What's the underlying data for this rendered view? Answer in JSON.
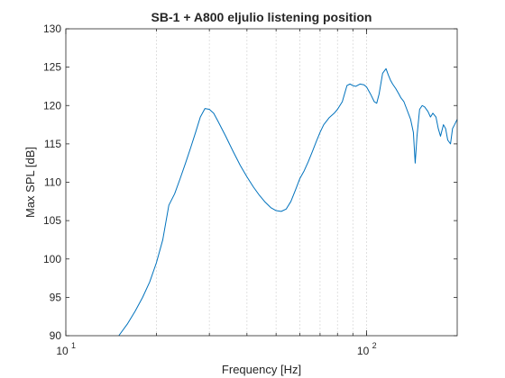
{
  "chart_data": {
    "type": "line",
    "title": "SB-1 + A800 eljulio listening position",
    "xlabel": "Frequency [Hz]",
    "ylabel": "Max SPL [dB]",
    "x_scale": "log",
    "xlim": [
      10,
      200
    ],
    "ylim": [
      90,
      130
    ],
    "x_ticks": [
      {
        "value": 10,
        "base": "10",
        "exp": "1"
      },
      {
        "value": 100,
        "base": "10",
        "exp": "2"
      }
    ],
    "y_ticks": [
      90,
      95,
      100,
      105,
      110,
      115,
      120,
      125,
      130
    ],
    "grid": "vertical-minor",
    "line_color": "#0072bd",
    "series": [
      {
        "x": [
          15,
          16,
          17,
          18,
          19,
          20,
          21,
          22,
          23,
          24,
          25,
          26,
          27,
          28,
          29,
          30,
          31,
          32,
          34,
          36,
          38,
          40,
          42,
          44,
          46,
          48,
          50,
          52,
          54,
          56,
          58,
          60,
          62,
          64,
          66,
          68,
          70,
          72,
          75,
          78,
          80,
          83,
          86,
          88,
          90,
          92,
          95,
          98,
          100,
          103,
          106,
          108,
          110,
          113,
          116,
          118,
          120,
          122,
          125,
          128,
          130,
          133,
          136,
          140,
          143,
          145,
          147,
          150,
          153,
          156,
          160,
          163,
          166,
          170,
          173,
          176,
          180,
          183,
          186,
          190,
          193,
          196,
          200
        ],
        "y": [
          90.0,
          91.5,
          93.2,
          95.0,
          97.0,
          99.5,
          102.5,
          107.0,
          108.5,
          110.5,
          112.5,
          114.5,
          116.5,
          118.5,
          119.6,
          119.5,
          119.0,
          118.0,
          116.0,
          114.0,
          112.2,
          110.7,
          109.4,
          108.3,
          107.4,
          106.7,
          106.3,
          106.2,
          106.5,
          107.5,
          109.0,
          110.5,
          111.5,
          112.7,
          114.0,
          115.3,
          116.5,
          117.5,
          118.4,
          119.0,
          119.5,
          120.5,
          122.6,
          122.8,
          122.6,
          122.5,
          122.8,
          122.7,
          122.4,
          121.5,
          120.5,
          120.3,
          121.5,
          124.2,
          124.8,
          124.0,
          123.3,
          122.8,
          122.2,
          121.5,
          121.0,
          120.5,
          119.5,
          118.2,
          116.5,
          112.5,
          116.0,
          119.5,
          120.0,
          119.8,
          119.2,
          118.5,
          119.0,
          118.5,
          117.0,
          116.0,
          117.5,
          117.0,
          115.5,
          115.0,
          117.0,
          117.5,
          118.2
        ]
      }
    ]
  }
}
